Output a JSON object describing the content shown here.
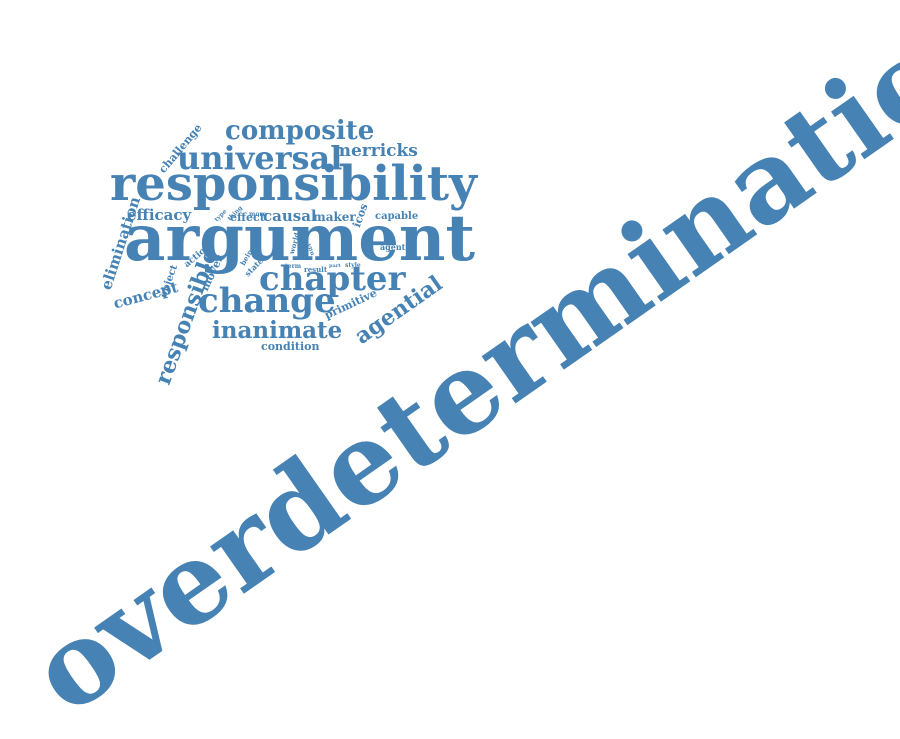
{
  "colors": {
    "word": "#4682b4",
    "background": "#ffffff"
  },
  "words": {
    "overdetermination": "overdetermination",
    "argument": "argument",
    "responsibility": "responsibility",
    "universal": "universal",
    "composite": "composite",
    "merricks": "merricks",
    "chapter": "chapter",
    "change": "change",
    "inanimate": "inanimate",
    "agential": "agential",
    "responsible": "responsible",
    "efficacy": "efficacy",
    "elimination": "elimination",
    "concept": "concept",
    "challenge": "challenge",
    "condition": "condition",
    "primitive": "primitive",
    "causal": "causal",
    "effect": "effect",
    "maker": "maker",
    "icos": "icos",
    "capable": "capable",
    "object": "object",
    "mover": "mover",
    "action": "action",
    "being": "being",
    "state": "state",
    "world": "world",
    "more": "more",
    "thing": "thing",
    "type": "type",
    "agent": "agent",
    "term": "term",
    "result": "result",
    "part": "part",
    "style": "style",
    "vnu": "vnu"
  }
}
